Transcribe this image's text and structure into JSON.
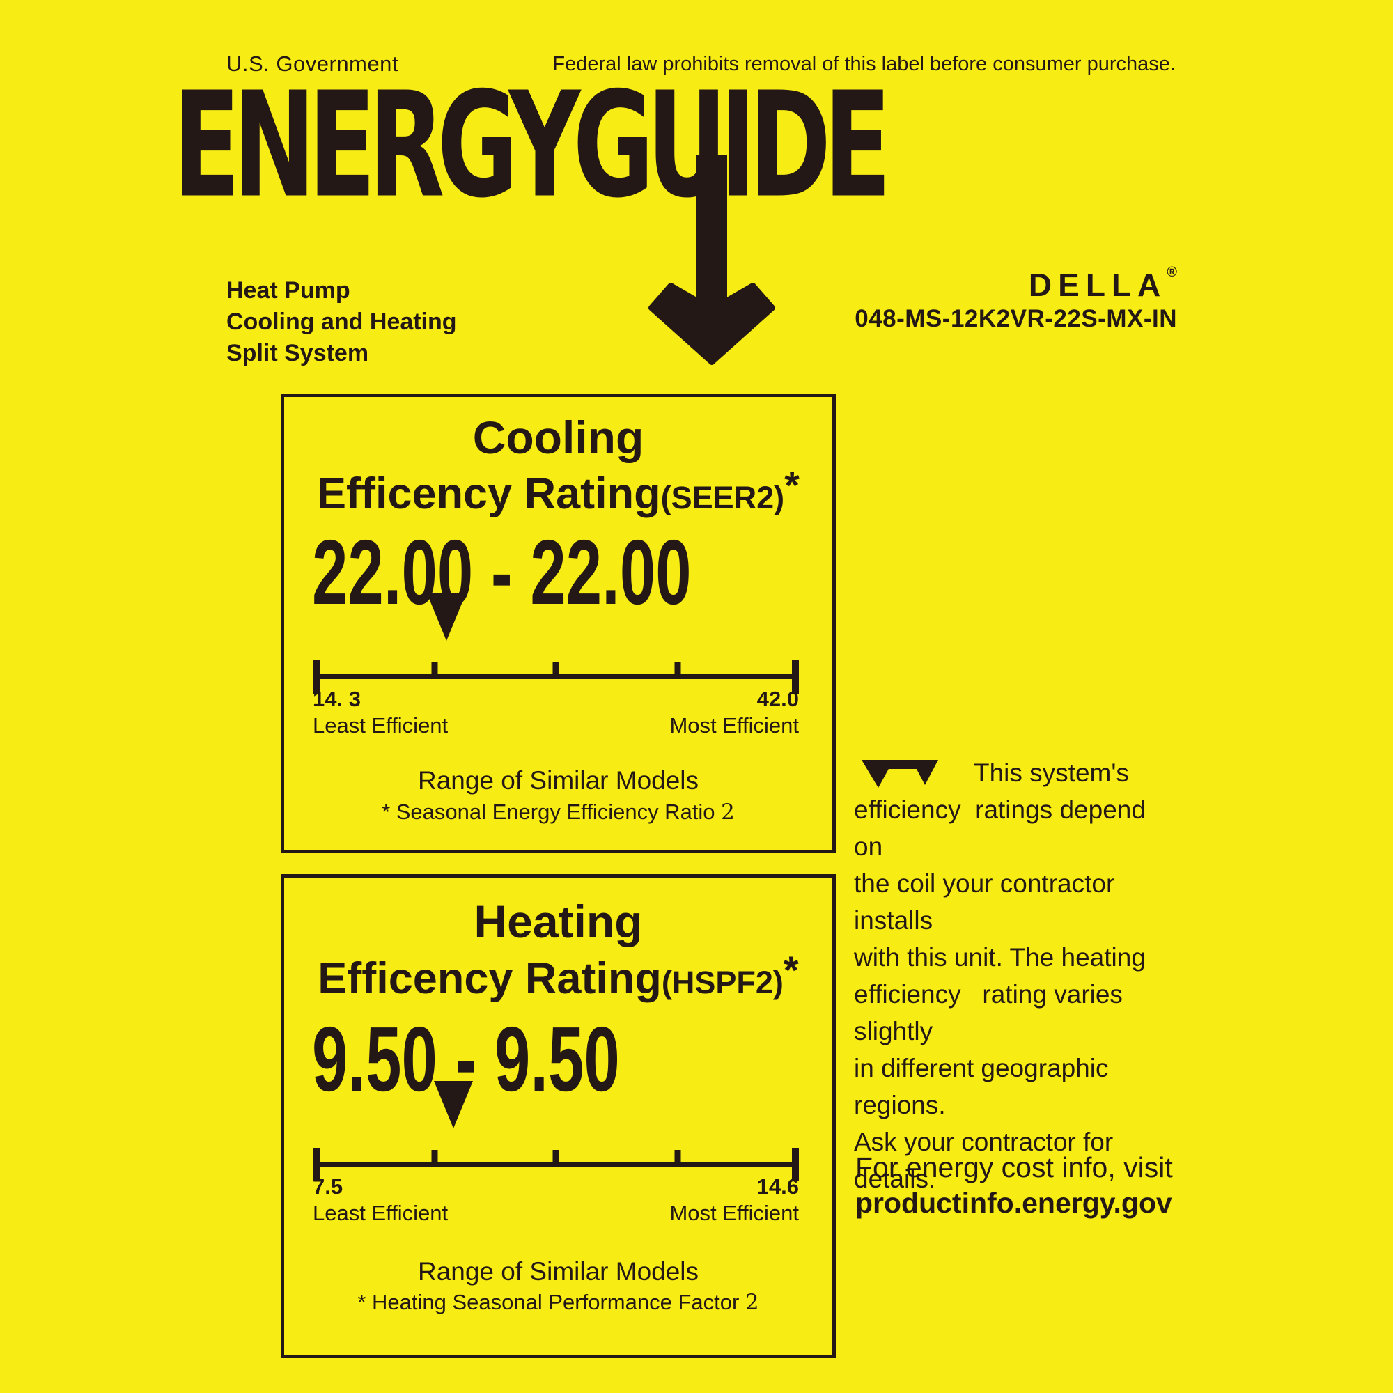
{
  "colors": {
    "background": "#f7ec13",
    "ink": "#231815"
  },
  "header": {
    "government": "U.S. Government",
    "federal_notice": "Federal law prohibits removal of this label before consumer purchase.",
    "logo_text": "ENERGYGUIDE"
  },
  "product": {
    "line1": "Heat Pump",
    "line2": "Cooling and Heating",
    "line3": "Split System",
    "brand": "DELLA",
    "brand_reg": "®",
    "model": "048-MS-12K2VR-22S-MX-IN"
  },
  "cooling": {
    "title": "Cooling",
    "rating_label": "Efficency Rating",
    "rating_qualifier": "(SEER2)",
    "rating_asterisk": "*",
    "range_text": "22.00 - 22.00",
    "scale": {
      "min_label": "14. 3",
      "max_label": "42.0",
      "least_label": "Least Efficient",
      "most_label": "Most Efficient",
      "min_value": 14.3,
      "max_value": 42.0,
      "value_low": 22.0,
      "value_high": 22.0,
      "pointer_percent": 27.5
    },
    "range_models": "Range of Similar Models",
    "footnote": "* Seasonal Energy Efficiency Ratio ",
    "footnote_suffix": "2"
  },
  "heating": {
    "title": "Heating",
    "rating_label": "Efficency Rating",
    "rating_qualifier": "(HSPF2)",
    "rating_asterisk": "*",
    "range_text": "9.50 - 9.50",
    "scale": {
      "min_label": "7.5",
      "max_label": "14.6",
      "least_label": "Least Efficient",
      "most_label": "Most Efficient",
      "min_value": 7.5,
      "max_value": 14.6,
      "value_low": 9.5,
      "value_high": 9.5,
      "pointer_percent": 29.0
    },
    "range_models": "Range of Similar Models",
    "footnote": "* Heating Seasonal Performance Factor ",
    "footnote_suffix": "2"
  },
  "side_note": {
    "lines": [
      "This system's",
      "efficiency  ratings depend on",
      "the coil your contractor installs",
      "with this unit. The heating",
      "efficiency   rating varies  slightly",
      "in different geographic  regions.",
      "Ask your contractor for details."
    ]
  },
  "footer": {
    "info_line": "For energy cost info, visit",
    "url": "productinfo.energy.gov"
  }
}
